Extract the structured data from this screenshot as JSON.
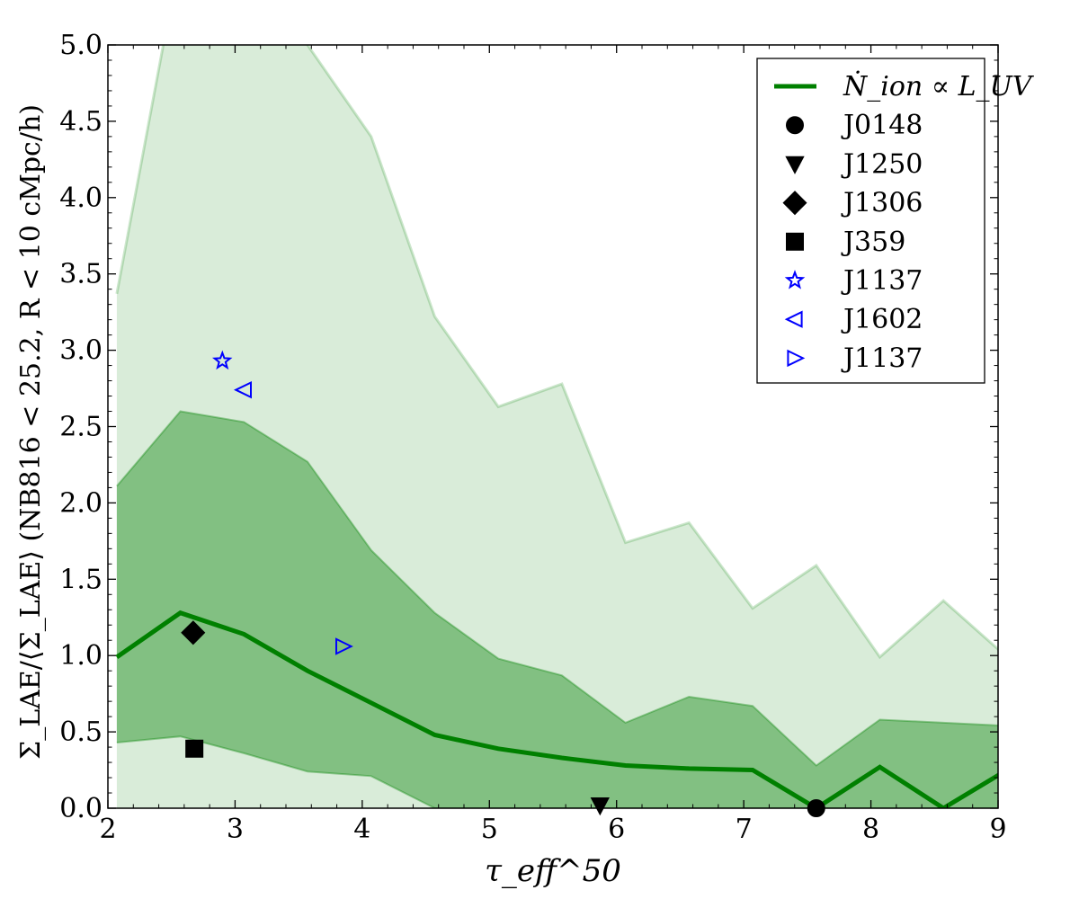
{
  "chart_data": {
    "type": "line",
    "xlabel": "τ_eff^50",
    "ylabel": "Σ_LAE/⟨Σ_LAE⟩ (NB816 < 25.2, R < 10 cMpc/h)",
    "xlim": [
      2,
      9
    ],
    "ylim": [
      0.0,
      5.0
    ],
    "x_ticks": [
      "2",
      "3",
      "4",
      "5",
      "6",
      "7",
      "8",
      "9"
    ],
    "y_ticks": [
      "0.0",
      "0.5",
      "1.0",
      "1.5",
      "2.0",
      "2.5",
      "3.0",
      "3.5",
      "4.0",
      "4.5",
      "5.0"
    ],
    "grid": false,
    "legend_position": "top-right",
    "x": [
      2.07,
      2.57,
      3.07,
      3.57,
      4.07,
      4.57,
      5.07,
      5.57,
      6.07,
      6.57,
      7.07,
      7.57,
      8.07,
      8.57,
      9.07
    ],
    "series": [
      {
        "name": "Ṅ_ion ∝ L_UV",
        "color": "#008000",
        "median": [
          0.99,
          1.28,
          1.14,
          0.9,
          0.69,
          0.48,
          0.39,
          0.33,
          0.28,
          0.26,
          0.25,
          0.0,
          0.27,
          0.0,
          0.25
        ],
        "band_68": {
          "low": [
            0.43,
            0.47,
            0.36,
            0.24,
            0.21,
            0.0,
            0.0,
            0.0,
            0.0,
            0.0,
            0.0,
            0.0,
            0.0,
            0.0,
            0.0
          ],
          "high": [
            2.11,
            2.6,
            2.53,
            2.27,
            1.69,
            1.28,
            0.98,
            0.87,
            0.56,
            0.73,
            0.67,
            0.28,
            0.58,
            0.56,
            0.54
          ],
          "color": "#008000"
        },
        "band_95": {
          "low": [
            0.0,
            0.0,
            0.0,
            0.0,
            0.0,
            0.0,
            0.0,
            0.0,
            0.0,
            0.0,
            0.0,
            0.0,
            0.0,
            0.0,
            0.0
          ],
          "high": [
            3.37,
            5.6,
            5.8,
            5.0,
            4.4,
            3.22,
            2.63,
            2.78,
            1.74,
            1.87,
            1.31,
            1.59,
            0.99,
            1.36,
            0.99
          ],
          "color": "#008000"
        }
      }
    ],
    "points": [
      {
        "name": "J0148",
        "x": 7.57,
        "y": 0.0,
        "marker": "circle",
        "color": "#000000",
        "filled": true
      },
      {
        "name": "J1250",
        "x": 5.87,
        "y": 0.02,
        "marker": "triangle-down",
        "color": "#000000",
        "filled": true
      },
      {
        "name": "J1306",
        "x": 2.67,
        "y": 1.15,
        "marker": "diamond",
        "color": "#000000",
        "filled": true
      },
      {
        "name": "J359",
        "x": 2.68,
        "y": 0.39,
        "marker": "square",
        "color": "#000000",
        "filled": true
      },
      {
        "name": "J1137",
        "x": 2.9,
        "y": 2.93,
        "marker": "star",
        "color": "#0000ff",
        "filled": false
      },
      {
        "name": "J1602",
        "x": 3.07,
        "y": 2.74,
        "marker": "triangle-left",
        "color": "#0000ff",
        "filled": false
      },
      {
        "name": "J1137",
        "x": 3.85,
        "y": 1.06,
        "marker": "triangle-right",
        "color": "#0000ff",
        "filled": false
      }
    ]
  }
}
